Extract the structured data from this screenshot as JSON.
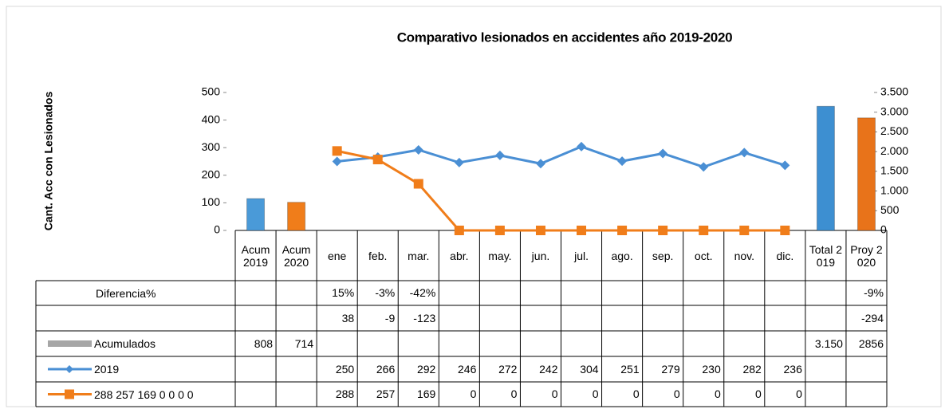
{
  "chart_data": {
    "type": "combo",
    "title": "Comparativo lesionados en accidentes año 2019-2020",
    "ylabel": "Cant. Acc con Lesionados",
    "categories": [
      "Acum 2019",
      "Acum 2020",
      "ene",
      "feb.",
      "mar.",
      "abr.",
      "may.",
      "jun.",
      "jul.",
      "ago.",
      "sep.",
      "oct.",
      "nov.",
      "dic.",
      "Total 2019",
      "Proy 2020"
    ],
    "ylim": [
      0,
      500
    ],
    "yticks": [
      0,
      100,
      200,
      300,
      400,
      500
    ],
    "y2lim": [
      0,
      3500
    ],
    "y2ticks": [
      0,
      500,
      {
        "value": 1000,
        "label": "1.000"
      },
      {
        "value": 1500,
        "label": "1.500"
      },
      {
        "value": 2000,
        "label": "2.000"
      },
      {
        "value": 2500,
        "label": "2.500"
      },
      {
        "value": 3000,
        "label": "3.000"
      },
      {
        "value": 3500,
        "label": "3.500"
      }
    ],
    "series": [
      {
        "name": "Acumulados",
        "type": "bar",
        "axis": "y2",
        "color": "#a6a6a6",
        "colors": [
          "#4a9ad8",
          "#f07d1a",
          null,
          null,
          null,
          null,
          null,
          null,
          null,
          null,
          null,
          null,
          null,
          null,
          "#3d8fd1",
          "#e8731a"
        ],
        "values": [
          808,
          714,
          null,
          null,
          null,
          null,
          null,
          null,
          null,
          null,
          null,
          null,
          null,
          null,
          3150,
          2856
        ],
        "value_labels": [
          null,
          null,
          null,
          null,
          null,
          null,
          null,
          null,
          null,
          null,
          null,
          null,
          null,
          null,
          "3.150",
          null
        ]
      },
      {
        "name": "2019",
        "type": "line",
        "color": "#4a8fd4",
        "values": [
          null,
          null,
          250,
          266,
          292,
          246,
          272,
          242,
          304,
          251,
          279,
          230,
          282,
          236,
          null,
          null
        ]
      },
      {
        "name": "288 257 169 0 0 0 0",
        "type": "line",
        "color": "#f07d1a",
        "values": [
          null,
          null,
          288,
          257,
          169,
          0,
          0,
          0,
          0,
          0,
          0,
          0,
          0,
          0,
          null,
          null
        ]
      }
    ],
    "table_rows": [
      {
        "name": "Diferencia%",
        "values": [
          null,
          null,
          15,
          -3,
          -42,
          null,
          null,
          null,
          null,
          null,
          null,
          null,
          null,
          null,
          null,
          -9
        ],
        "value_labels": [
          null,
          null,
          "15%",
          "-3%",
          "-42%",
          null,
          null,
          null,
          null,
          null,
          null,
          null,
          null,
          null,
          null,
          "-9%"
        ]
      },
      {
        "values": [
          null,
          null,
          38,
          -9,
          -123,
          null,
          null,
          null,
          null,
          null,
          null,
          null,
          null,
          null,
          null,
          -294
        ]
      }
    ]
  }
}
